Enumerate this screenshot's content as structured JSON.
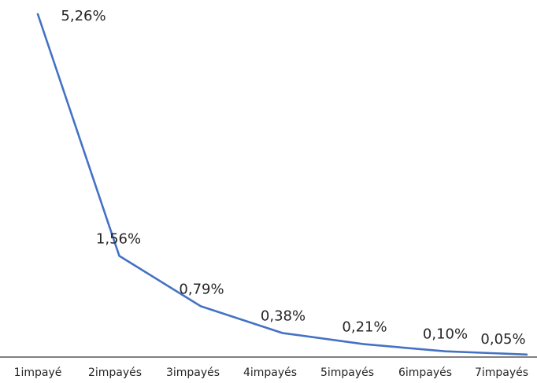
{
  "chart_data": {
    "type": "line",
    "title": "",
    "xlabel": "",
    "ylabel": "",
    "categories": [
      "1impayé",
      "2impayés",
      "3impayés",
      "4impayés",
      "5impayés",
      "6impayés",
      "7impayés"
    ],
    "series": [
      {
        "values": [
          5.26,
          1.56,
          0.79,
          0.38,
          0.21,
          0.1,
          0.05
        ],
        "data_labels": [
          "5,26%",
          "1,56%",
          "0,79%",
          "0,38%",
          "0,21%",
          "0,10%",
          "0,05%"
        ],
        "color": "#4472c4"
      }
    ],
    "ylim": [
      0,
      5.26
    ],
    "grid": false,
    "legend": "none",
    "axis_color": "#000000"
  }
}
